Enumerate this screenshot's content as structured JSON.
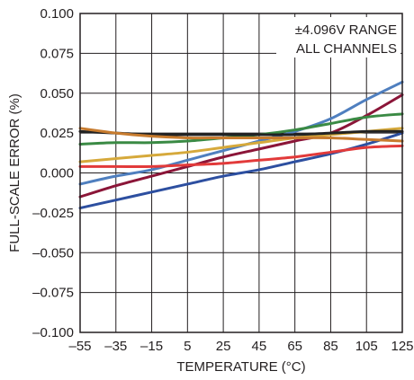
{
  "chart_data": {
    "type": "line",
    "title": "",
    "xlabel": "TEMPERATURE (°C)",
    "ylabel": "FULL-SCALE ERROR (%)",
    "xlim": [
      -55,
      125
    ],
    "ylim": [
      -0.1,
      0.1
    ],
    "xticks": [
      "–55",
      "–35",
      "–15",
      "5",
      "25",
      "45",
      "65",
      "85",
      "105",
      "125"
    ],
    "yticks": [
      "0.100",
      "0.075",
      "0.050",
      "0.025",
      "0.000",
      "–0.025",
      "–0.050",
      "–0.075",
      "–0.100"
    ],
    "grid": true,
    "annotation": [
      "±4.096V RANGE",
      "ALL CHANNELS"
    ],
    "series": [
      {
        "color": "#4f7fbf",
        "x": [
          -55,
          -35,
          -15,
          5,
          25,
          45,
          65,
          85,
          105,
          125
        ],
        "y": [
          -0.007,
          -0.002,
          0.002,
          0.008,
          0.014,
          0.02,
          0.026,
          0.034,
          0.046,
          0.057
        ]
      },
      {
        "color": "#8b1538",
        "x": [
          -55,
          -35,
          -15,
          5,
          25,
          45,
          65,
          85,
          105,
          125
        ],
        "y": [
          -0.015,
          -0.008,
          -0.002,
          0.004,
          0.01,
          0.015,
          0.02,
          0.025,
          0.036,
          0.049
        ]
      },
      {
        "color": "#2d4fa0",
        "x": [
          -55,
          -35,
          -15,
          5,
          25,
          45,
          65,
          85,
          105,
          125
        ],
        "y": [
          -0.022,
          -0.017,
          -0.012,
          -0.007,
          -0.002,
          0.002,
          0.007,
          0.012,
          0.018,
          0.025
        ]
      },
      {
        "color": "#3a8a44",
        "x": [
          -55,
          -35,
          -15,
          5,
          25,
          45,
          65,
          85,
          105,
          125
        ],
        "y": [
          0.018,
          0.019,
          0.019,
          0.02,
          0.022,
          0.024,
          0.027,
          0.031,
          0.035,
          0.037
        ]
      },
      {
        "color": "#d6a93b",
        "x": [
          -55,
          -35,
          -15,
          5,
          25,
          45,
          65,
          85,
          105,
          125
        ],
        "y": [
          0.007,
          0.009,
          0.011,
          0.013,
          0.016,
          0.019,
          0.022,
          0.024,
          0.026,
          0.028
        ]
      },
      {
        "color": "#e23a3a",
        "x": [
          -55,
          -35,
          -15,
          5,
          25,
          45,
          65,
          85,
          105,
          125
        ],
        "y": [
          0.004,
          0.004,
          0.004,
          0.005,
          0.006,
          0.008,
          0.01,
          0.013,
          0.016,
          0.017
        ]
      },
      {
        "color": "#222222",
        "x": [
          -55,
          -35,
          -15,
          5,
          25,
          45,
          65,
          85,
          105,
          125
        ],
        "y": [
          0.026,
          0.025,
          0.024,
          0.024,
          0.024,
          0.024,
          0.024,
          0.025,
          0.026,
          0.026
        ]
      },
      {
        "color": "#c77b2e",
        "x": [
          -55,
          -35,
          -15,
          5,
          25,
          45,
          65,
          85,
          105,
          125
        ],
        "y": [
          0.028,
          0.025,
          0.023,
          0.022,
          0.022,
          0.022,
          0.022,
          0.022,
          0.021,
          0.02
        ]
      }
    ]
  }
}
